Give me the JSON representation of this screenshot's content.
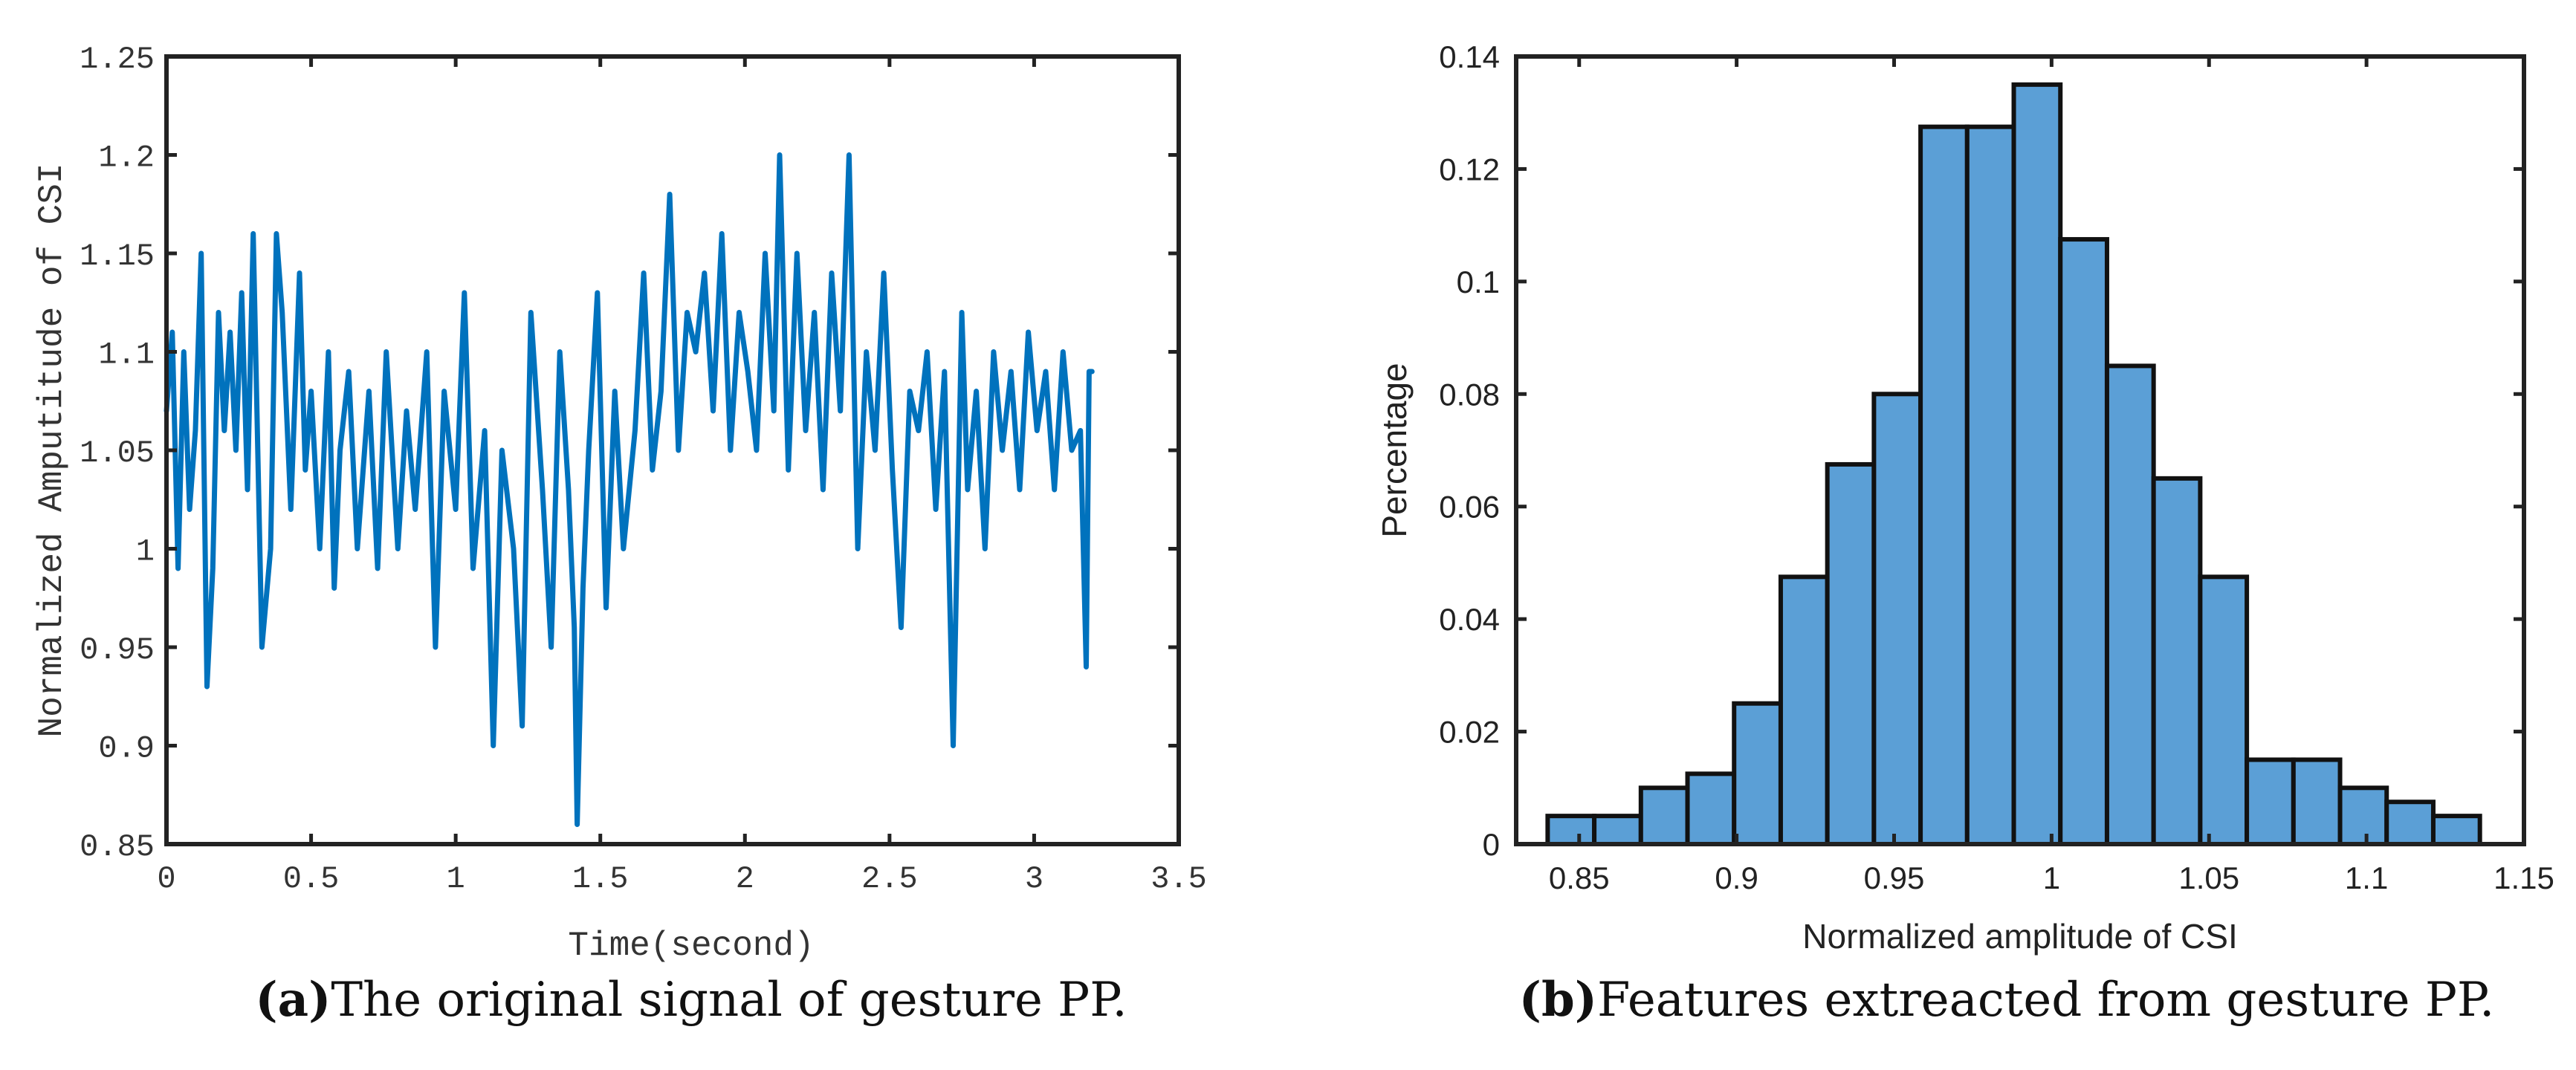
{
  "colors": {
    "line": "#0072BD",
    "bar_fill": "#5B9FD6",
    "bar_edge": "#111111",
    "axis": "#222222",
    "text": "#333333"
  },
  "chart_data": [
    {
      "id": "a",
      "type": "line",
      "title": "",
      "xlabel": "Time(second)",
      "ylabel": "Normalized Amputitude of CSI",
      "xlim": [
        0,
        3.5
      ],
      "ylim": [
        0.85,
        1.25
      ],
      "xticks": [
        0,
        0.5,
        1,
        1.5,
        2,
        2.5,
        3,
        3.5
      ],
      "xtick_labels": [
        "0",
        "0.5",
        "1",
        "1.5",
        "2",
        "2.5",
        "3",
        "3.5"
      ],
      "yticks": [
        0.85,
        0.9,
        0.95,
        1,
        1.05,
        1.1,
        1.15,
        1.2,
        1.25
      ],
      "ytick_labels": [
        "0.85",
        "0.9",
        "0.95",
        "1",
        "1.05",
        "1.1",
        "1.15",
        "1.2",
        "1.25"
      ],
      "series": [
        {
          "name": "gesture PP signal",
          "x": [
            0,
            0.02,
            0.04,
            0.06,
            0.08,
            0.1,
            0.12,
            0.14,
            0.16,
            0.18,
            0.2,
            0.22,
            0.24,
            0.26,
            0.28,
            0.3,
            0.33,
            0.36,
            0.38,
            0.4,
            0.43,
            0.46,
            0.48,
            0.5,
            0.53,
            0.56,
            0.58,
            0.6,
            0.63,
            0.66,
            0.7,
            0.73,
            0.76,
            0.8,
            0.83,
            0.86,
            0.9,
            0.93,
            0.96,
            1,
            1.03,
            1.06,
            1.1,
            1.13,
            1.16,
            1.2,
            1.23,
            1.26,
            1.3,
            1.33,
            1.36,
            1.39,
            1.41,
            1.42,
            1.44,
            1.46,
            1.49,
            1.52,
            1.55,
            1.58,
            1.62,
            1.65,
            1.68,
            1.71,
            1.74,
            1.77,
            1.8,
            1.83,
            1.86,
            1.89,
            1.92,
            1.95,
            1.98,
            2.01,
            2.04,
            2.07,
            2.1,
            2.12,
            2.15,
            2.18,
            2.21,
            2.24,
            2.27,
            2.3,
            2.33,
            2.36,
            2.39,
            2.42,
            2.45,
            2.48,
            2.51,
            2.54,
            2.57,
            2.6,
            2.63,
            2.66,
            2.69,
            2.72,
            2.75,
            2.77,
            2.8,
            2.83,
            2.86,
            2.89,
            2.92,
            2.95,
            2.98,
            3.01,
            3.04,
            3.07,
            3.1,
            3.13,
            3.16,
            3.18,
            3.19,
            3.2
          ],
          "values": [
            1.07,
            1.11,
            0.99,
            1.1,
            1.02,
            1.06,
            1.15,
            0.93,
            0.99,
            1.12,
            1.06,
            1.11,
            1.05,
            1.13,
            1.03,
            1.16,
            0.95,
            1.0,
            1.16,
            1.12,
            1.02,
            1.14,
            1.04,
            1.08,
            1.0,
            1.1,
            0.98,
            1.05,
            1.09,
            1.0,
            1.08,
            0.99,
            1.1,
            1.0,
            1.07,
            1.02,
            1.1,
            0.95,
            1.08,
            1.02,
            1.13,
            0.99,
            1.06,
            0.9,
            1.05,
            1.0,
            0.91,
            1.12,
            1.03,
            0.95,
            1.1,
            1.03,
            0.96,
            0.86,
            0.98,
            1.05,
            1.13,
            0.97,
            1.08,
            1.0,
            1.06,
            1.14,
            1.04,
            1.08,
            1.18,
            1.05,
            1.12,
            1.1,
            1.14,
            1.07,
            1.16,
            1.05,
            1.12,
            1.09,
            1.05,
            1.15,
            1.07,
            1.2,
            1.04,
            1.15,
            1.06,
            1.12,
            1.03,
            1.14,
            1.07,
            1.2,
            1.0,
            1.1,
            1.05,
            1.14,
            1.04,
            0.96,
            1.08,
            1.06,
            1.1,
            1.02,
            1.09,
            0.9,
            1.12,
            1.03,
            1.08,
            1.0,
            1.1,
            1.05,
            1.09,
            1.03,
            1.11,
            1.06,
            1.09,
            1.03,
            1.1,
            1.05,
            1.06,
            0.94,
            1.09,
            1.09
          ]
        }
      ]
    },
    {
      "id": "b",
      "type": "bar",
      "title": "",
      "xlabel": "Normalized amplitude of CSI",
      "ylabel": "Percentage",
      "xlim": [
        0.83,
        1.15
      ],
      "ylim": [
        0,
        0.14
      ],
      "xticks": [
        0.85,
        0.9,
        0.95,
        1,
        1.05,
        1.1,
        1.15
      ],
      "xtick_labels": [
        "0.85",
        "0.9",
        "0.95",
        "1",
        "1.05",
        "1.1",
        "1.15"
      ],
      "yticks": [
        0,
        0.02,
        0.04,
        0.06,
        0.08,
        0.1,
        0.12,
        0.14
      ],
      "ytick_labels": [
        "0",
        "0.02",
        "0.04",
        "0.06",
        "0.08",
        "0.1",
        "0.12",
        "0.14"
      ],
      "bin_edges": [
        0.84,
        0.8548,
        0.8696,
        0.8844,
        0.8992,
        0.914,
        0.9288,
        0.9436,
        0.9584,
        0.9732,
        0.988,
        1.0028,
        1.0176,
        1.0324,
        1.0472,
        1.062,
        1.0768,
        1.0916,
        1.1064,
        1.1212,
        1.136
      ],
      "values": [
        0.005,
        0.005,
        0.01,
        0.0125,
        0.025,
        0.0475,
        0.0675,
        0.08,
        0.1275,
        0.1275,
        0.135,
        0.1075,
        0.085,
        0.065,
        0.0475,
        0.015,
        0.015,
        0.01,
        0.0075,
        0.005
      ]
    }
  ],
  "captions": {
    "a": {
      "tag": "(a)",
      "text": "The original signal of gesture PP."
    },
    "b": {
      "tag": "(b)",
      "text": "Features extreacted from gesture PP."
    }
  }
}
